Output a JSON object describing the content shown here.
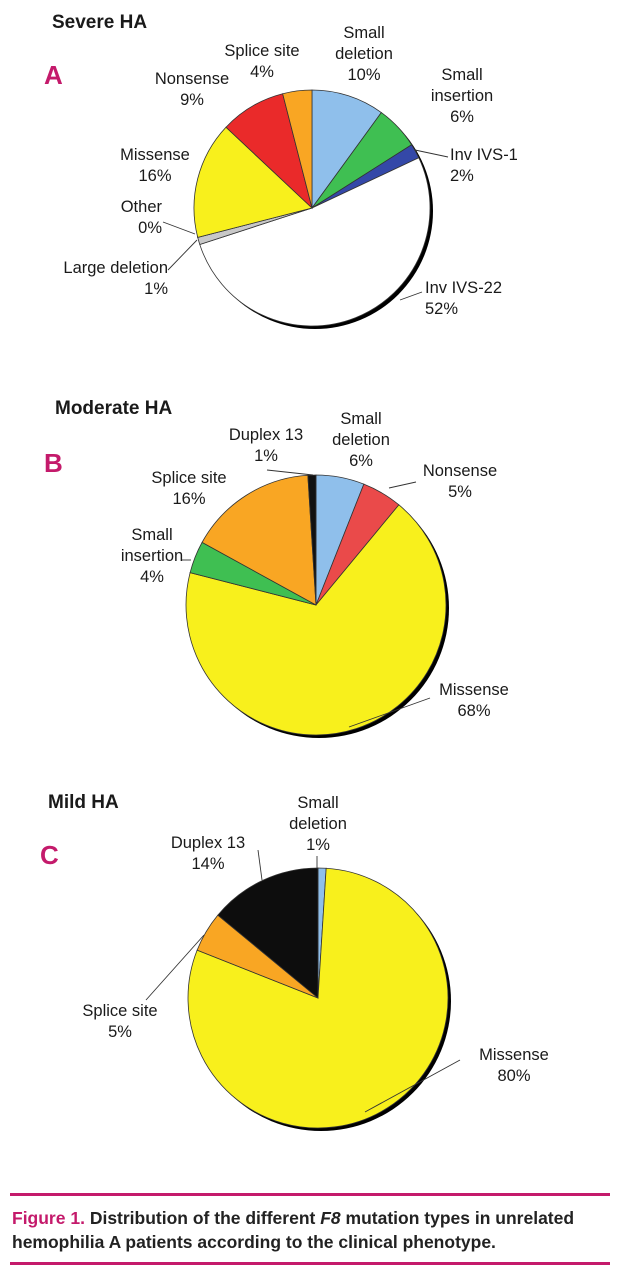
{
  "chart_data": [
    {
      "type": "pie",
      "panel": "A",
      "title": "Severe HA",
      "slices": [
        {
          "label": "Small deletion",
          "value": 10,
          "color": "#8fbfeb"
        },
        {
          "label": "Small insertion",
          "value": 6,
          "color": "#3fbf52"
        },
        {
          "label": "Inv IVS-1",
          "value": 2,
          "color": "#3448a8"
        },
        {
          "label": "Inv IVS-22",
          "value": 52,
          "color": "#ffffff"
        },
        {
          "label": "Large deletion",
          "value": 1,
          "color": "#c8c8c8"
        },
        {
          "label": "Other",
          "value": 0,
          "color": "#111111"
        },
        {
          "label": "Missense",
          "value": 16,
          "color": "#f8f01c"
        },
        {
          "label": "Nonsense",
          "value": 9,
          "color": "#ea2a2a"
        },
        {
          "label": "Splice site",
          "value": 4,
          "color": "#f9a623"
        }
      ],
      "labels_text": [
        {
          "line1": "Small",
          "line2": "deletion",
          "line3": "10%"
        },
        {
          "line1": "Small",
          "line2": "insertion",
          "line3": "6%"
        },
        {
          "line1": "Inv IVS-1",
          "line2": "2%"
        },
        {
          "line1": "Inv IVS-22",
          "line2": "52%"
        },
        {
          "line1": "Large deletion",
          "line2": "1%"
        },
        {
          "line1": "Other",
          "line2": "0%"
        },
        {
          "line1": "Missense",
          "line2": "16%"
        },
        {
          "line1": "Nonsense",
          "line2": "9%"
        },
        {
          "line1": "Splice site",
          "line2": "4%"
        }
      ]
    },
    {
      "type": "pie",
      "panel": "B",
      "title": "Moderate HA",
      "slices": [
        {
          "label": "Small deletion",
          "value": 6,
          "color": "#8fbfeb"
        },
        {
          "label": "Nonsense",
          "value": 5,
          "color": "#ea4a4a"
        },
        {
          "label": "Missense",
          "value": 68,
          "color": "#f8f01c"
        },
        {
          "label": "Small insertion",
          "value": 4,
          "color": "#3fbf52"
        },
        {
          "label": "Splice site",
          "value": 16,
          "color": "#f9a623"
        },
        {
          "label": "Duplex 13",
          "value": 1,
          "color": "#111111"
        }
      ],
      "labels_text": [
        {
          "line1": "Small",
          "line2": "deletion",
          "line3": "6%"
        },
        {
          "line1": "Nonsense",
          "line2": "5%"
        },
        {
          "line1": "Missense",
          "line2": "68%"
        },
        {
          "line1": "Small",
          "line2": "insertion",
          "line3": "4%"
        },
        {
          "line1": "Splice site",
          "line2": "16%"
        },
        {
          "line1": "Duplex 13",
          "line2": "1%"
        }
      ]
    },
    {
      "type": "pie",
      "panel": "C",
      "title": "Mild HA",
      "slices": [
        {
          "label": "Small deletion",
          "value": 1,
          "color": "#8fbfeb"
        },
        {
          "label": "Missense",
          "value": 80,
          "color": "#f8f01c"
        },
        {
          "label": "Splice site",
          "value": 5,
          "color": "#f9a623"
        },
        {
          "label": "Duplex 13",
          "value": 14,
          "color": "#0d0d0d"
        }
      ],
      "labels_text": [
        {
          "line1": "Small",
          "line2": "deletion",
          "line3": "1%"
        },
        {
          "line1": "Missense",
          "line2": "80%"
        },
        {
          "line1": "Splice site",
          "line2": "5%"
        },
        {
          "line1": "Duplex 13",
          "line2": "14%"
        }
      ]
    }
  ],
  "caption": {
    "figure": "Figure 1.",
    "text_before": "Distribution of the different",
    "gene": "F8",
    "text_after": "mutation types in unrelated hemophilia A patients according to the clinical phenotype."
  },
  "colors": {
    "accent": "#c41a6b"
  }
}
